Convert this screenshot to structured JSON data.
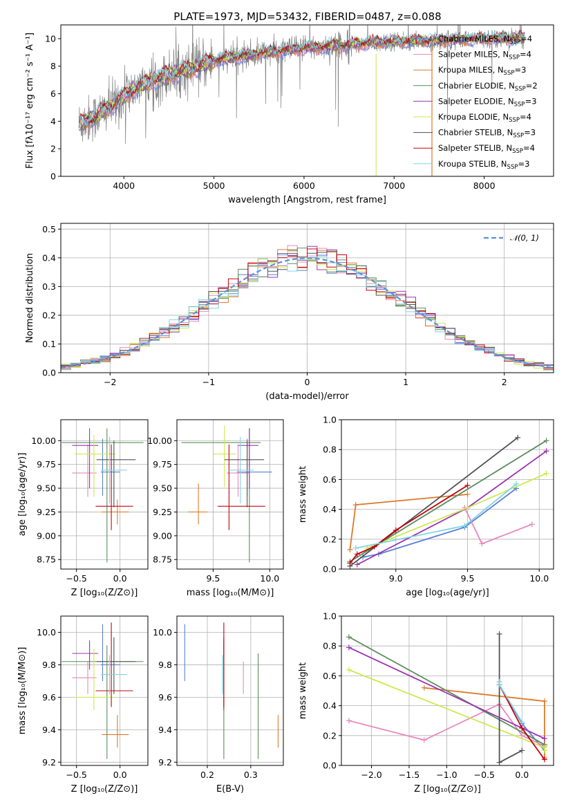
{
  "figure_title": "PLATE=1973, MJD=53432, FIBERID=0487, z=0.088",
  "models": [
    {
      "key": "chabrier_miles",
      "label": "Chabrier MILES, N",
      "sub": "SSP",
      "suffix": "=4",
      "color": "#5b7fd8"
    },
    {
      "key": "salpeter_miles",
      "label": "Salpeter MILES, N",
      "sub": "SSP",
      "suffix": "=4",
      "color": "#e986bd"
    },
    {
      "key": "kroupa_miles",
      "label": "Kroupa MILES, N",
      "sub": "SSP",
      "suffix": "=3",
      "color": "#dd7a2a"
    },
    {
      "key": "chabrier_elodie",
      "label": "Chabrier ELODIE, N",
      "sub": "SSP",
      "suffix": "=2",
      "color": "#5a8c5a"
    },
    {
      "key": "salpeter_elodie",
      "label": "Salpeter ELODIE, N",
      "sub": "SSP",
      "suffix": "=3",
      "color": "#9a32b0"
    },
    {
      "key": "kroupa_elodie",
      "label": "Kroupa ELODIE, N",
      "sub": "SSP",
      "suffix": "=4",
      "color": "#cde84a"
    },
    {
      "key": "chabrier_stelib",
      "label": "Chabrier STELIB, N",
      "sub": "SSP",
      "suffix": "=3",
      "color": "#505050"
    },
    {
      "key": "salpeter_stelib",
      "label": "Salpeter STELIB, N",
      "sub": "SSP",
      "suffix": "=4",
      "color": "#c00010"
    },
    {
      "key": "kroupa_stelib",
      "label": "Kroupa STELIB, N",
      "sub": "SSP",
      "suffix": "=3",
      "color": "#7fd4e0"
    }
  ],
  "chart_data": [
    {
      "id": "spectrum",
      "type": "line",
      "xlabel": "wavelength [Angstrom, rest frame]",
      "ylabel": "Flux [fλ10⁻¹⁷ erg cm⁻² s⁻¹ A⁻¹]",
      "xlim": [
        3300,
        8770
      ],
      "ylim": [
        0,
        11
      ],
      "xticks": [
        4000,
        5000,
        6000,
        7000,
        8000
      ],
      "yticks": [
        0,
        2,
        4,
        6,
        8,
        10
      ],
      "continuum_anchors": {
        "x": [
          3500,
          3700,
          3900,
          4100,
          4300,
          4500,
          4800,
          5000,
          5300,
          5600,
          6000,
          6500,
          7000,
          7400,
          7800,
          8200,
          8500
        ],
        "y": [
          3.8,
          4.4,
          5.3,
          6.3,
          6.9,
          7.4,
          7.9,
          8.4,
          8.7,
          9.0,
          9.3,
          9.55,
          9.8,
          9.85,
          9.95,
          10.05,
          10.0
        ]
      },
      "data_color": "#808080",
      "grid": false,
      "legend": "upper right"
    },
    {
      "id": "residuals",
      "type": "histogram",
      "xlabel": "(data-model)/error",
      "ylabel": "Normed distribution",
      "xlim": [
        -2.5,
        2.5
      ],
      "ylim": [
        0,
        0.52
      ],
      "xticks": [
        -2,
        -1,
        0,
        1,
        2
      ],
      "yticks": [
        0.0,
        0.1,
        0.2,
        0.3,
        0.4,
        0.5
      ],
      "bin_width": 0.1,
      "reference_curve": "N(0,1)",
      "legend_label": "𝒩(0, 1)",
      "reference_color": "#5b8fd8",
      "grid": true
    },
    {
      "id": "age_vs_Z",
      "type": "errorbar",
      "xlabel": "Z [log₁₀(Z/Z⊙)]",
      "ylabel": "age  [log₁₀(age/yr)]",
      "xlim": [
        -0.68,
        0.32
      ],
      "ylim": [
        8.65,
        10.22
      ],
      "xticks": [
        -0.5,
        0.0
      ],
      "yticks": [
        8.75,
        9.0,
        9.25,
        9.5,
        9.75,
        10.0
      ],
      "points": [
        {
          "model": "chabrier_miles",
          "x": -0.2,
          "y": 9.67,
          "xerr": [
            0.02,
            0.2
          ],
          "yerr": [
            0.25,
            0.35
          ]
        },
        {
          "model": "salpeter_miles",
          "x": -0.37,
          "y": 9.66,
          "xerr": [
            0.18,
            0.1
          ],
          "yerr": [
            0.25,
            0.3
          ]
        },
        {
          "model": "kroupa_miles",
          "x": -0.03,
          "y": 9.25,
          "xerr": [
            0.18,
            0.13
          ],
          "yerr": [
            0.13,
            0.13
          ]
        },
        {
          "model": "chabrier_elodie",
          "x": -0.15,
          "y": 9.98,
          "xerr": [
            0.52,
            0.42
          ],
          "yerr": [
            1.26,
            0.15
          ]
        },
        {
          "model": "salpeter_elodie",
          "x": -0.35,
          "y": 9.95,
          "xerr": [
            0.2,
            0.1
          ],
          "yerr": [
            0.45,
            0.18
          ]
        },
        {
          "model": "kroupa_elodie",
          "x": -0.3,
          "y": 9.86,
          "xerr": [
            0.22,
            0.25
          ],
          "yerr": [
            0.45,
            0.2
          ]
        },
        {
          "model": "chabrier_stelib",
          "x": -0.07,
          "y": 9.8,
          "xerr": [
            0.2,
            0.25
          ],
          "yerr": [
            0.5,
            0.2
          ]
        },
        {
          "model": "salpeter_stelib",
          "x": -0.1,
          "y": 9.31,
          "xerr": [
            0.18,
            0.25
          ],
          "yerr": [
            0.25,
            0.65
          ]
        },
        {
          "model": "kroupa_stelib",
          "x": -0.12,
          "y": 9.69,
          "xerr": [
            0.1,
            0.2
          ],
          "yerr": [
            0.35,
            0.35
          ]
        }
      ]
    },
    {
      "id": "age_vs_mass",
      "type": "errorbar",
      "xlabel": "mass [log₁₀(M/M⊙)]",
      "ylabel": "",
      "xlim": [
        9.18,
        10.12
      ],
      "ylim": [
        8.65,
        10.22
      ],
      "xticks": [
        9.5,
        10.0
      ],
      "yticks": [
        8.75,
        9.0,
        9.25,
        9.5,
        9.75,
        10.0
      ],
      "points": [
        {
          "model": "chabrier_miles",
          "x": 9.8,
          "y": 9.67,
          "xerr": [
            0.09,
            0.22
          ],
          "yerr": [
            0.25,
            0.35
          ]
        },
        {
          "model": "salpeter_miles",
          "x": 9.72,
          "y": 9.66,
          "xerr": [
            0.1,
            0.1
          ],
          "yerr": [
            0.25,
            0.3
          ]
        },
        {
          "model": "kroupa_miles",
          "x": 9.37,
          "y": 9.25,
          "xerr": [
            0.09,
            0.08
          ],
          "yerr": [
            0.13,
            0.3
          ]
        },
        {
          "model": "chabrier_elodie",
          "x": 9.82,
          "y": 9.98,
          "xerr": [
            0.6,
            0.1
          ],
          "yerr": [
            1.26,
            0.15
          ]
        },
        {
          "model": "salpeter_elodie",
          "x": 9.82,
          "y": 9.95,
          "xerr": [
            0.1,
            0.08
          ],
          "yerr": [
            0.45,
            0.18
          ]
        },
        {
          "model": "kroupa_elodie",
          "x": 9.6,
          "y": 9.86,
          "xerr": [
            0.1,
            0.1
          ],
          "yerr": [
            0.35,
            0.3
          ]
        },
        {
          "model": "chabrier_stelib",
          "x": 9.8,
          "y": 9.8,
          "xerr": [
            0.2,
            0.15
          ],
          "yerr": [
            0.5,
            0.2
          ]
        },
        {
          "model": "salpeter_stelib",
          "x": 9.64,
          "y": 9.31,
          "xerr": [
            0.1,
            0.32
          ],
          "yerr": [
            0.25,
            0.65
          ]
        },
        {
          "model": "kroupa_stelib",
          "x": 9.74,
          "y": 9.69,
          "xerr": [
            0.1,
            0.12
          ],
          "yerr": [
            0.35,
            0.35
          ]
        }
      ]
    },
    {
      "id": "mass_weight_vs_age",
      "type": "line",
      "xlabel": "age  [log₁₀(age/yr)]",
      "ylabel": "mass weight",
      "xlim": [
        8.62,
        10.1
      ],
      "ylim": [
        0,
        1
      ],
      "xticks": [
        9.0,
        9.5,
        10.0
      ],
      "yticks": [
        0.0,
        0.2,
        0.4,
        0.6,
        0.8,
        1.0
      ],
      "series": [
        {
          "model": "chabrier_miles",
          "x": [
            8.77,
            8.88,
            9.48,
            9.84
          ],
          "y": [
            0.08,
            0.1,
            0.28,
            0.54
          ]
        },
        {
          "model": "salpeter_miles",
          "x": [
            9.48,
            9.6,
            9.95
          ],
          "y": [
            0.41,
            0.17,
            0.3
          ]
        },
        {
          "model": "kroupa_miles",
          "x": [
            8.68,
            8.72,
            9.5
          ],
          "y": [
            0.13,
            0.43,
            0.5
          ]
        },
        {
          "model": "chabrier_elodie",
          "x": [
            8.68,
            10.05
          ],
          "y": [
            0.05,
            0.86
          ]
        },
        {
          "model": "salpeter_elodie",
          "x": [
            8.73,
            9.5,
            10.05
          ],
          "y": [
            0.03,
            0.41,
            0.79
          ]
        },
        {
          "model": "kroupa_elodie",
          "x": [
            8.8,
            9.5,
            10.05
          ],
          "y": [
            0.14,
            0.41,
            0.64
          ]
        },
        {
          "model": "chabrier_stelib",
          "x": [
            8.68,
            9.85
          ],
          "y": [
            0.02,
            0.88
          ]
        },
        {
          "model": "salpeter_stelib",
          "x": [
            8.68,
            8.73,
            8.85,
            9.0,
            9.5
          ],
          "y": [
            0.04,
            0.1,
            0.15,
            0.26,
            0.56
          ]
        },
        {
          "model": "kroupa_stelib",
          "x": [
            8.72,
            9.48,
            9.84
          ],
          "y": [
            0.14,
            0.29,
            0.57
          ]
        }
      ],
      "grid": true
    },
    {
      "id": "mass_vs_Z",
      "type": "errorbar",
      "xlabel": "Z [log₁₀(Z/Z⊙)]",
      "ylabel": "mass [log₁₀(M/M⊙)]",
      "xlim": [
        -0.68,
        0.32
      ],
      "ylim": [
        9.18,
        10.1
      ],
      "xticks": [
        -0.5,
        0.0
      ],
      "yticks": [
        9.2,
        9.4,
        9.6,
        9.8,
        10.0
      ],
      "points": [
        {
          "model": "chabrier_miles",
          "x": -0.2,
          "y": 9.8,
          "xerr": [
            0.02,
            0.2
          ],
          "yerr": [
            0.1,
            0.25
          ]
        },
        {
          "model": "salpeter_miles",
          "x": -0.37,
          "y": 9.72,
          "xerr": [
            0.18,
            0.1
          ],
          "yerr": [
            0.1,
            0.1
          ]
        },
        {
          "model": "kroupa_miles",
          "x": -0.03,
          "y": 9.37,
          "xerr": [
            0.18,
            0.13
          ],
          "yerr": [
            0.08,
            0.12
          ]
        },
        {
          "model": "chabrier_elodie",
          "x": -0.15,
          "y": 9.82,
          "xerr": [
            0.52,
            0.42
          ],
          "yerr": [
            0.6,
            0.1
          ]
        },
        {
          "model": "salpeter_elodie",
          "x": -0.35,
          "y": 9.87,
          "xerr": [
            0.2,
            0.1
          ],
          "yerr": [
            0.1,
            0.08
          ]
        },
        {
          "model": "kroupa_elodie",
          "x": -0.3,
          "y": 9.6,
          "xerr": [
            0.22,
            0.25
          ],
          "yerr": [
            0.08,
            0.3
          ]
        },
        {
          "model": "chabrier_stelib",
          "x": -0.07,
          "y": 9.82,
          "xerr": [
            0.2,
            0.25
          ],
          "yerr": [
            0.2,
            0.15
          ]
        },
        {
          "model": "salpeter_stelib",
          "x": -0.1,
          "y": 9.64,
          "xerr": [
            0.18,
            0.25
          ],
          "yerr": [
            0.1,
            0.42
          ]
        },
        {
          "model": "kroupa_stelib",
          "x": -0.12,
          "y": 9.74,
          "xerr": [
            0.1,
            0.2
          ],
          "yerr": [
            0.12,
            0.12
          ]
        }
      ]
    },
    {
      "id": "mass_vs_ebv",
      "type": "errorbar",
      "xlabel": "E(B-V)",
      "ylabel": "",
      "xlim": [
        0.13,
        0.375
      ],
      "ylim": [
        9.18,
        10.1
      ],
      "xticks": [
        0.2,
        0.3
      ],
      "yticks": [
        9.2,
        9.4,
        9.6,
        9.8,
        10.0
      ],
      "points": [
        {
          "model": "chabrier_miles",
          "x": 0.148,
          "y": 9.8,
          "xerr": [
            0,
            0
          ],
          "yerr": [
            0.1,
            0.25
          ]
        },
        {
          "model": "salpeter_miles",
          "x": 0.283,
          "y": 9.72,
          "xerr": [
            0,
            0
          ],
          "yerr": [
            0.1,
            0.1
          ]
        },
        {
          "model": "kroupa_miles",
          "x": 0.363,
          "y": 9.37,
          "xerr": [
            0,
            0
          ],
          "yerr": [
            0.08,
            0.12
          ]
        },
        {
          "model": "chabrier_elodie",
          "x": 0.238,
          "y": 9.82,
          "xerr": [
            0,
            0
          ],
          "yerr": [
            0.6,
            0.1
          ]
        },
        {
          "model": "salpeter_elodie",
          "x": 0.238,
          "y": 9.87,
          "xerr": [
            0,
            0
          ],
          "yerr": [
            0.1,
            0.08
          ]
        },
        {
          "model": "kroupa_elodie",
          "x": 0.238,
          "y": 9.6,
          "xerr": [
            0,
            0
          ],
          "yerr": [
            0.08,
            0.3
          ]
        },
        {
          "model": "chabrier_stelib",
          "x": 0.238,
          "y": 9.82,
          "xerr": [
            0,
            0
          ],
          "yerr": [
            0.3,
            0.15
          ]
        },
        {
          "model": "salpeter_stelib",
          "x": 0.238,
          "y": 9.64,
          "xerr": [
            0,
            0
          ],
          "yerr": [
            0.1,
            0.42
          ]
        },
        {
          "model": "kroupa_stelib",
          "x": 0.235,
          "y": 9.74,
          "xerr": [
            0,
            0
          ],
          "yerr": [
            0.12,
            0.12
          ]
        },
        {
          "model": "chabrier_elodie",
          "x": 0.317,
          "y": 9.55,
          "xerr": [
            0,
            0
          ],
          "yerr": [
            0.33,
            0.32
          ]
        }
      ]
    },
    {
      "id": "mass_weight_vs_Z",
      "type": "line",
      "xlabel": "Z [log₁₀(Z/Z⊙)]",
      "ylabel": "mass weight",
      "xlim": [
        -2.4,
        0.42
      ],
      "ylim": [
        0,
        1
      ],
      "xticks": [
        -2.0,
        -1.5,
        -1.0,
        -0.5,
        0.0
      ],
      "yticks": [
        0.0,
        0.2,
        0.4,
        0.6,
        0.8,
        1.0
      ],
      "series": [
        {
          "model": "chabrier_miles",
          "x": [
            -0.3,
            -0.3,
            0.0,
            0.3
          ],
          "y": [
            0.56,
            0.54,
            0.28,
            0.1
          ]
        },
        {
          "model": "salpeter_miles",
          "x": [
            -2.3,
            -1.3,
            -0.3,
            0.0,
            0.3
          ],
          "y": [
            0.3,
            0.17,
            0.41,
            0.2,
            0.13
          ]
        },
        {
          "model": "kroupa_miles",
          "x": [
            -1.3,
            0.3,
            0.3
          ],
          "y": [
            0.52,
            0.43,
            0.05
          ]
        },
        {
          "model": "chabrier_elodie",
          "x": [
            -2.3,
            0.3
          ],
          "y": [
            0.86,
            0.14
          ]
        },
        {
          "model": "salpeter_elodie",
          "x": [
            -2.3,
            0.3
          ],
          "y": [
            0.79,
            0.18
          ]
        },
        {
          "model": "kroupa_elodie",
          "x": [
            -2.3,
            0.3,
            0.3
          ],
          "y": [
            0.64,
            0.12,
            0.1
          ]
        },
        {
          "model": "chabrier_stelib",
          "x": [
            -0.3,
            -0.3,
            0.0
          ],
          "y": [
            0.88,
            0.02,
            0.1
          ]
        },
        {
          "model": "salpeter_stelib",
          "x": [
            -0.3,
            0.0,
            0.3
          ],
          "y": [
            0.54,
            0.25,
            0.04
          ]
        },
        {
          "model": "kroupa_stelib",
          "x": [
            -0.3,
            -0.3,
            0.0
          ],
          "y": [
            0.56,
            0.54,
            0.29
          ]
        }
      ],
      "grid": true
    }
  ]
}
